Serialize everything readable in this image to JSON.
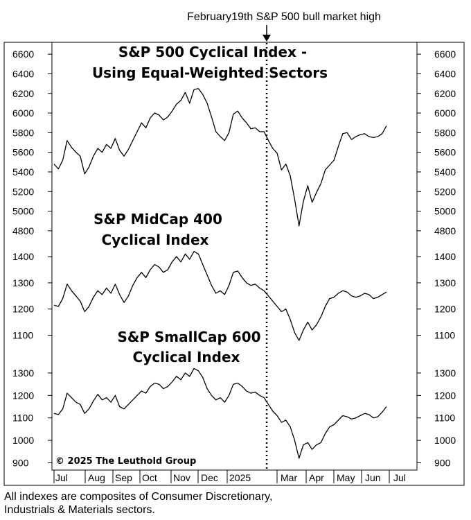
{
  "annotation": "February19th S&P 500 bull market high",
  "copyright": "© 2025 The Leuthold Group",
  "footnote": {
    "line1": "All indexes are composites of Consumer Discretionary,",
    "line2": "Industrials & Materials sectors."
  },
  "chart_data": {
    "type": "line",
    "x_labels": [
      "Jul",
      "Aug",
      "Sep",
      "Oct",
      "Nov",
      "Dec",
      "2025",
      "Mar",
      "Apr",
      "May",
      "Jun",
      "Jul"
    ],
    "event_marker": {
      "date": "2025-02-19",
      "style": "dotted vertical line"
    },
    "panels": [
      {
        "title_line1": "S&P 500 Cyclical Index -",
        "title_line2": "Using Equal-Weighted Sectors",
        "y_ticks": [
          4800,
          5000,
          5200,
          5400,
          5600,
          5800,
          6000,
          6200,
          6400,
          6600
        ],
        "ylim": [
          4700,
          6700
        ],
        "series": {
          "values": [
            5480,
            5430,
            5520,
            5720,
            5650,
            5600,
            5560,
            5380,
            5450,
            5560,
            5640,
            5600,
            5680,
            5640,
            5740,
            5620,
            5560,
            5630,
            5720,
            5810,
            5900,
            5850,
            5950,
            6000,
            5980,
            5930,
            5960,
            6020,
            6090,
            6130,
            6210,
            6100,
            6240,
            6250,
            6190,
            6100,
            5960,
            5810,
            5760,
            5720,
            5800,
            5990,
            6020,
            5950,
            5900,
            5840,
            5850,
            5810,
            5810,
            5720,
            5640,
            5590,
            5420,
            5480,
            5360,
            5120,
            4850,
            5100,
            5260,
            5090,
            5190,
            5280,
            5420,
            5470,
            5520,
            5660,
            5790,
            5800,
            5730,
            5760,
            5780,
            5790,
            5760,
            5750,
            5760,
            5790,
            5870
          ]
        }
      },
      {
        "title_line1": "S&P MidCap 400",
        "title_line2": "Cyclical Index",
        "y_ticks": [
          1100,
          1200,
          1300,
          1400
        ],
        "ylim": [
          1030,
          1440
        ],
        "series": {
          "values": [
            1215,
            1210,
            1240,
            1295,
            1270,
            1250,
            1230,
            1190,
            1210,
            1245,
            1270,
            1255,
            1280,
            1260,
            1295,
            1255,
            1225,
            1250,
            1290,
            1320,
            1340,
            1320,
            1350,
            1370,
            1360,
            1340,
            1350,
            1380,
            1400,
            1380,
            1410,
            1390,
            1420,
            1410,
            1370,
            1330,
            1290,
            1260,
            1270,
            1255,
            1290,
            1340,
            1345,
            1320,
            1300,
            1290,
            1295,
            1280,
            1270,
            1250,
            1230,
            1210,
            1190,
            1200,
            1160,
            1110,
            1080,
            1120,
            1150,
            1120,
            1140,
            1170,
            1210,
            1240,
            1245,
            1260,
            1270,
            1265,
            1250,
            1245,
            1250,
            1260,
            1255,
            1240,
            1245,
            1255,
            1265
          ]
        }
      },
      {
        "title_line1": "S&P SmallCap 600",
        "title_line2": "Cyclical Index",
        "y_ticks": [
          900,
          1000,
          1100,
          1200,
          1300
        ],
        "ylim": [
          880,
          1340
        ],
        "series": {
          "values": [
            1120,
            1115,
            1140,
            1210,
            1190,
            1170,
            1160,
            1120,
            1140,
            1175,
            1205,
            1180,
            1190,
            1170,
            1200,
            1150,
            1140,
            1160,
            1180,
            1200,
            1220,
            1210,
            1240,
            1255,
            1250,
            1230,
            1240,
            1260,
            1285,
            1270,
            1300,
            1285,
            1320,
            1310,
            1280,
            1230,
            1200,
            1180,
            1190,
            1170,
            1200,
            1250,
            1255,
            1240,
            1220,
            1210,
            1215,
            1200,
            1190,
            1160,
            1130,
            1110,
            1080,
            1090,
            1060,
            1000,
            920,
            980,
            990,
            960,
            980,
            990,
            1030,
            1060,
            1070,
            1090,
            1110,
            1105,
            1095,
            1100,
            1110,
            1120,
            1115,
            1100,
            1105,
            1125,
            1150
          ]
        }
      }
    ]
  }
}
